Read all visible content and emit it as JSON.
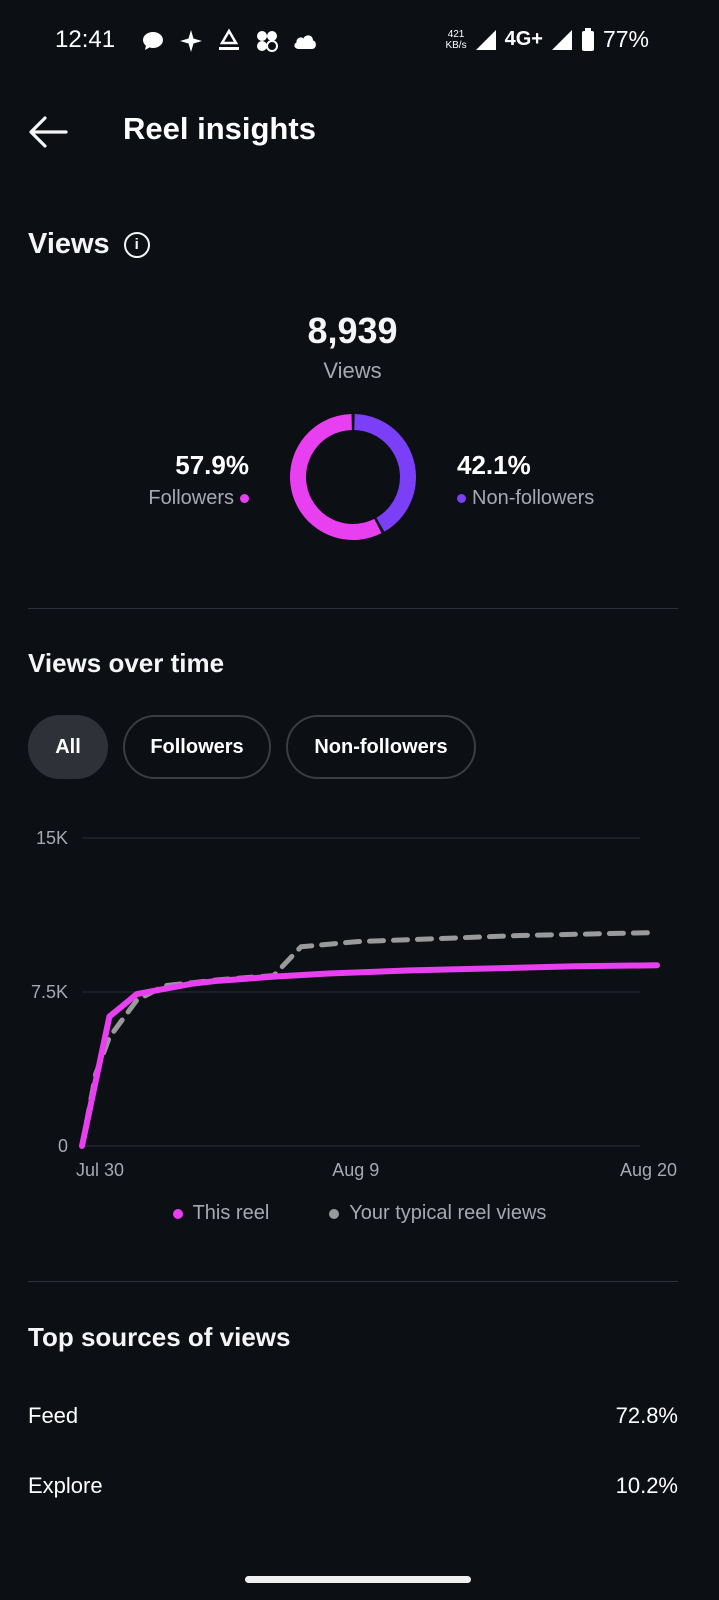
{
  "status_bar": {
    "time": "12:41",
    "speed_value": "421",
    "speed_unit": "KB/s",
    "network": "4G+",
    "battery": "77%",
    "icons": [
      "chat-icon",
      "sparkle-icon",
      "astrapay-icon",
      "clover-icon",
      "cloud-icon"
    ]
  },
  "header": {
    "title": "Reel insights"
  },
  "views": {
    "heading": "Views",
    "total": "8,939",
    "total_label": "Views",
    "followers_pct": "57.9%",
    "followers_label": "Followers",
    "nonfollowers_pct": "42.1%",
    "nonfollowers_label": "Non-followers",
    "followers_fraction": 0.579,
    "colors": {
      "followers": "#e83ff0",
      "nonfollowers": "#7b3ff7"
    }
  },
  "views_over_time": {
    "heading": "Views over time",
    "tabs": [
      {
        "label": "All",
        "active": true
      },
      {
        "label": "Followers",
        "active": false
      },
      {
        "label": "Non-followers",
        "active": false
      }
    ]
  },
  "chart_data": {
    "type": "line",
    "y_ticks": [
      "15K",
      "7.5K",
      "0"
    ],
    "ylim": [
      0,
      15000
    ],
    "x_ticks": [
      "Jul 30",
      "Aug 9",
      "Aug 20"
    ],
    "grid": true,
    "legend_placement": "bottom",
    "series": [
      {
        "name": "This reel",
        "color": "#e83ff0",
        "style": "solid",
        "points": [
          [
            0,
            0
          ],
          [
            1,
            6300
          ],
          [
            2,
            7400
          ],
          [
            3,
            7650
          ],
          [
            4,
            7900
          ],
          [
            5,
            8050
          ],
          [
            6,
            8150
          ],
          [
            7,
            8250
          ],
          [
            9,
            8400
          ],
          [
            12,
            8550
          ],
          [
            15,
            8650
          ],
          [
            18,
            8750
          ],
          [
            21,
            8800
          ]
        ]
      },
      {
        "name": "Your typical reel views",
        "color": "#9a9a9a",
        "style": "dashed",
        "points": [
          [
            0,
            0
          ],
          [
            0.5,
            3500
          ],
          [
            1,
            5300
          ],
          [
            2,
            7100
          ],
          [
            3,
            7800
          ],
          [
            4,
            7950
          ],
          [
            5,
            8100
          ],
          [
            6,
            8200
          ],
          [
            7,
            8300
          ],
          [
            8,
            9700
          ],
          [
            10,
            9950
          ],
          [
            13,
            10100
          ],
          [
            16,
            10250
          ],
          [
            21,
            10400
          ]
        ]
      }
    ]
  },
  "sources": {
    "heading": "Top sources of views",
    "rows": [
      {
        "label": "Feed",
        "value": "72.8%"
      },
      {
        "label": "Explore",
        "value": "10.2%"
      }
    ]
  }
}
